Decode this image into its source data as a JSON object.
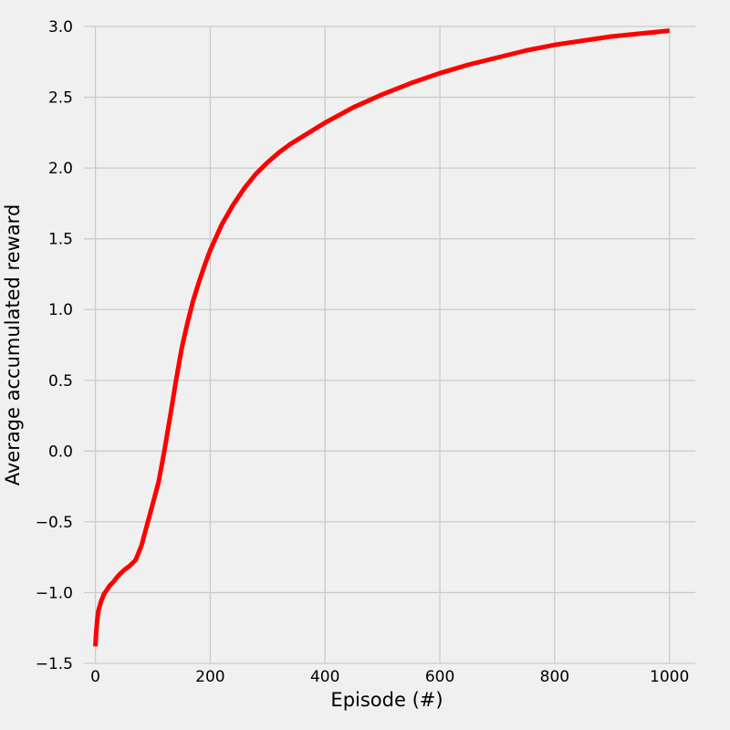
{
  "chart_data": {
    "type": "line",
    "title": "",
    "xlabel": "Episode (#)",
    "ylabel": "Average accumulated reward",
    "xlim": [
      -20,
      1045
    ],
    "ylim": [
      -1.5,
      3.0
    ],
    "xticks": [
      0,
      200,
      400,
      600,
      800,
      1000
    ],
    "xtick_labels": [
      "0",
      "200",
      "400",
      "600",
      "800",
      "1000"
    ],
    "yticks": [
      -1.5,
      -1.0,
      -0.5,
      0.0,
      0.5,
      1.0,
      1.5,
      2.0,
      2.5,
      3.0
    ],
    "ytick_labels": [
      "−1.5",
      "−1.0",
      "−0.5",
      "0.0",
      "0.5",
      "1.0",
      "1.5",
      "2.0",
      "2.5",
      "3.0"
    ],
    "grid": true,
    "legend": "none",
    "colors": {
      "background": "#f0f0f0",
      "grid": "#cbcbcb",
      "line": "#ff0000"
    },
    "series": [
      {
        "x": [
          0,
          1,
          3,
          5,
          10,
          15,
          20,
          25,
          30,
          40,
          50,
          60,
          70,
          80,
          90,
          100,
          110,
          120,
          130,
          140,
          150,
          160,
          170,
          180,
          190,
          200,
          220,
          240,
          260,
          280,
          300,
          320,
          340,
          360,
          380,
          400,
          450,
          500,
          550,
          600,
          650,
          700,
          750,
          800,
          850,
          900,
          950,
          1000
        ],
        "y": [
          -1.38,
          -1.3,
          -1.2,
          -1.13,
          -1.06,
          -1.01,
          -0.98,
          -0.95,
          -0.93,
          -0.88,
          -0.84,
          -0.81,
          -0.77,
          -0.67,
          -0.52,
          -0.37,
          -0.22,
          0.0,
          0.24,
          0.49,
          0.72,
          0.9,
          1.06,
          1.19,
          1.31,
          1.42,
          1.6,
          1.74,
          1.86,
          1.96,
          2.04,
          2.11,
          2.17,
          2.22,
          2.27,
          2.32,
          2.43,
          2.52,
          2.6,
          2.67,
          2.73,
          2.78,
          2.83,
          2.87,
          2.9,
          2.93,
          2.95,
          2.97
        ]
      }
    ]
  }
}
